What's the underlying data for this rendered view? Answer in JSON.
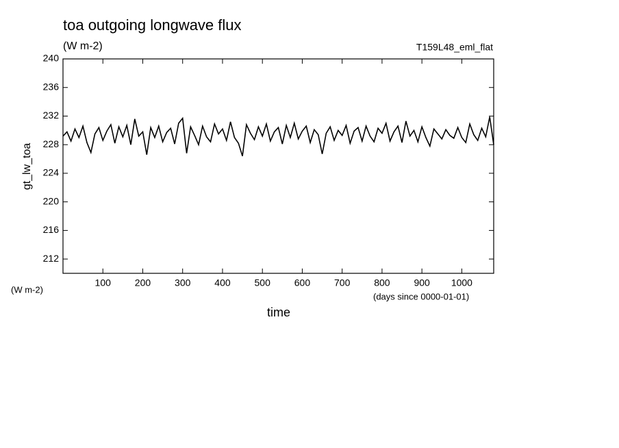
{
  "chart_data": {
    "type": "line",
    "title": "toa outgoing longwave flux",
    "subtitle": "(W m-2)",
    "run_label": "T159L48_eml_flat",
    "y_label": "gt_lw_toa",
    "y_unit_label": "(W m-2)",
    "x_unit_label": "(days since 0000-01-01)",
    "x_label": "time",
    "xlim": [
      0,
      1080
    ],
    "ylim": [
      210,
      240
    ],
    "xticks": [
      100,
      200,
      300,
      400,
      500,
      600,
      700,
      800,
      900,
      1000
    ],
    "yticks": [
      212,
      216,
      220,
      224,
      228,
      232,
      236,
      240
    ],
    "x": [
      0,
      10,
      20,
      30,
      40,
      50,
      60,
      70,
      80,
      90,
      100,
      110,
      120,
      130,
      140,
      150,
      160,
      170,
      180,
      190,
      200,
      210,
      220,
      230,
      240,
      250,
      260,
      270,
      280,
      290,
      300,
      310,
      320,
      330,
      340,
      350,
      360,
      370,
      380,
      390,
      400,
      410,
      420,
      430,
      440,
      450,
      460,
      470,
      480,
      490,
      500,
      510,
      520,
      530,
      540,
      550,
      560,
      570,
      580,
      590,
      600,
      610,
      620,
      630,
      640,
      650,
      660,
      670,
      680,
      690,
      700,
      710,
      720,
      730,
      740,
      750,
      760,
      770,
      780,
      790,
      800,
      810,
      820,
      830,
      840,
      850,
      860,
      870,
      880,
      890,
      900,
      910,
      920,
      930,
      940,
      950,
      960,
      970,
      980,
      990,
      1000,
      1010,
      1020,
      1030,
      1040,
      1050,
      1060,
      1070,
      1080
    ],
    "series": [
      {
        "color": "#000000",
        "values": [
          229.2,
          229.8,
          228.5,
          230.2,
          229.0,
          230.6,
          228.3,
          226.9,
          229.5,
          230.4,
          228.6,
          229.9,
          230.8,
          228.2,
          230.5,
          229.1,
          230.7,
          228.0,
          231.6,
          229.2,
          229.8,
          226.6,
          230.4,
          229.0,
          230.6,
          228.4,
          229.7,
          230.3,
          228.1,
          231.0,
          231.7,
          226.8,
          230.5,
          229.3,
          228.0,
          230.6,
          229.1,
          228.4,
          230.9,
          229.5,
          230.2,
          228.6,
          231.2,
          229.0,
          228.2,
          226.4,
          230.8,
          229.6,
          228.7,
          230.5,
          229.2,
          230.9,
          228.5,
          229.8,
          230.4,
          228.1,
          230.7,
          229.0,
          231.0,
          228.8,
          229.9,
          230.6,
          228.3,
          230.1,
          229.4,
          226.7,
          229.6,
          230.5,
          228.6,
          230.0,
          229.3,
          230.7,
          228.2,
          229.9,
          230.4,
          228.5,
          230.6,
          229.2,
          228.4,
          230.3,
          229.6,
          231.0,
          228.5,
          229.8,
          230.6,
          228.3,
          231.3,
          229.2,
          230.0,
          228.4,
          230.5,
          229.0,
          227.8,
          230.2,
          229.5,
          228.8,
          230.1,
          229.3,
          228.9,
          230.4,
          229.0,
          228.3,
          230.9,
          229.4,
          228.6,
          230.3,
          229.1,
          231.9,
          228.0
        ]
      }
    ]
  }
}
